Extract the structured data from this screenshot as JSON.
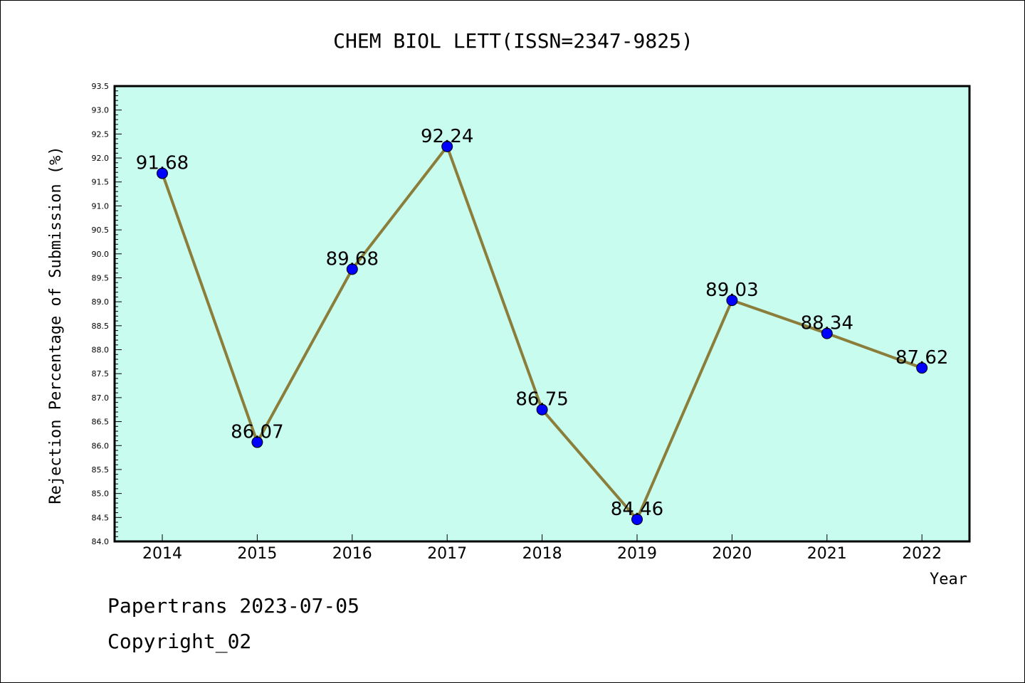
{
  "chart_data": {
    "type": "line",
    "title": "CHEM BIOL LETT(ISSN=2347-9825)",
    "xlabel": "Year",
    "ylabel": "Rejection Percentage of Submission (%)",
    "categories": [
      "2014",
      "2015",
      "2016",
      "2017",
      "2018",
      "2019",
      "2020",
      "2021",
      "2022"
    ],
    "values": [
      91.68,
      86.07,
      89.68,
      92.24,
      86.75,
      84.46,
      89.03,
      88.34,
      87.62
    ],
    "value_labels": [
      "91.68",
      "86.07",
      "89.68",
      "92.24",
      "86.75",
      "84.46",
      "89.03",
      "88.34",
      "87.62"
    ],
    "ylim": [
      84.0,
      93.5
    ],
    "y_ticks": [
      "84.0",
      "84.5",
      "85.0",
      "85.5",
      "86.0",
      "86.5",
      "87.0",
      "87.5",
      "88.0",
      "88.5",
      "89.0",
      "89.5",
      "90.0",
      "90.5",
      "91.0",
      "91.5",
      "92.0",
      "92.5",
      "93.0",
      "93.5"
    ],
    "grid": false,
    "colors": {
      "plot_background": "#c8fcee",
      "line": "#8b7d3a",
      "marker": "#0000ff"
    }
  },
  "footer": {
    "line1": "Papertrans 2023-07-05",
    "line2": "Copyright_02"
  }
}
